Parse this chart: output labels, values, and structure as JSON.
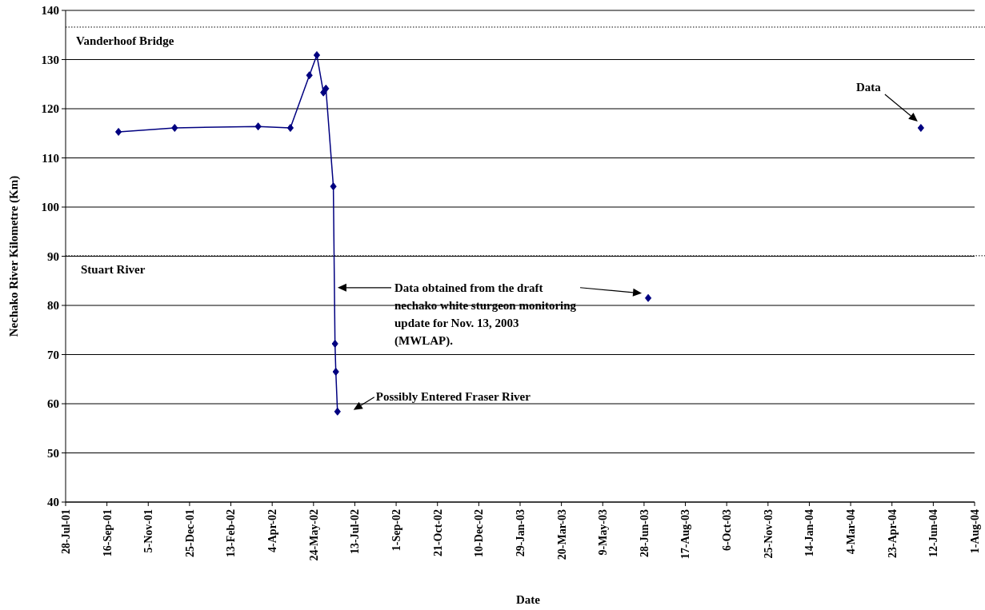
{
  "chart_data": {
    "type": "line",
    "xlabel": "Date",
    "ylabel": "Nechako River Kilometre (Km)",
    "xlim": [
      "2001-07-28",
      "2004-08-01"
    ],
    "ylim": [
      40,
      140
    ],
    "xticks": [
      {
        "value": "2001-07-28",
        "label": "28-Jul-01"
      },
      {
        "value": "2001-09-16",
        "label": "16-Sep-01"
      },
      {
        "value": "2001-11-05",
        "label": "5-Nov-01"
      },
      {
        "value": "2001-12-25",
        "label": "25-Dec-01"
      },
      {
        "value": "2002-02-13",
        "label": "13-Feb-02"
      },
      {
        "value": "2002-04-04",
        "label": "4-Apr-02"
      },
      {
        "value": "2002-05-24",
        "label": "24-May-02"
      },
      {
        "value": "2002-07-13",
        "label": "13-Jul-02"
      },
      {
        "value": "2002-09-01",
        "label": "1-Sep-02"
      },
      {
        "value": "2002-10-21",
        "label": "21-Oct-02"
      },
      {
        "value": "2002-12-10",
        "label": "10-Dec-02"
      },
      {
        "value": "2003-01-29",
        "label": "29-Jan-03"
      },
      {
        "value": "2003-03-20",
        "label": "20-Mar-03"
      },
      {
        "value": "2003-05-09",
        "label": "9-May-03"
      },
      {
        "value": "2003-06-28",
        "label": "28-Jun-03"
      },
      {
        "value": "2003-08-17",
        "label": "17-Aug-03"
      },
      {
        "value": "2003-10-06",
        "label": "6-Oct-03"
      },
      {
        "value": "2003-11-25",
        "label": "25-Nov-03"
      },
      {
        "value": "2004-01-14",
        "label": "14-Jan-04"
      },
      {
        "value": "2004-03-04",
        "label": "4-Mar-04"
      },
      {
        "value": "2004-04-23",
        "label": "23-Apr-04"
      },
      {
        "value": "2004-06-12",
        "label": "12-Jun-04"
      },
      {
        "value": "2004-08-01",
        "label": "1-Aug-04"
      }
    ],
    "yticks": [
      40,
      50,
      60,
      70,
      80,
      90,
      100,
      110,
      120,
      130,
      140
    ],
    "grid": "y",
    "marker": "diamond",
    "line_style": "solid",
    "series": [
      {
        "color": "#000080",
        "x": [
          "2001-09-30",
          "2001-12-07",
          "2002-03-18",
          "2002-04-26",
          "2002-05-19",
          "2002-05-28",
          "2002-06-05",
          "2002-06-08",
          "2002-06-17",
          "2002-06-19",
          "2002-06-20",
          "2002-06-22"
        ],
        "values": [
          115.3,
          116.1,
          116.4,
          116.1,
          126.8,
          130.9,
          123.3,
          124.1,
          104.2,
          72.2,
          66.5,
          58.4
        ]
      },
      {
        "type": "scatter",
        "color": "#000080",
        "x": [
          "2003-07-03"
        ],
        "values": [
          81.5
        ]
      },
      {
        "type": "scatter",
        "color": "#000080",
        "x": [
          "2004-05-28"
        ],
        "values": [
          116.1
        ]
      }
    ],
    "ref_lines": [
      {
        "axis": "y",
        "value": 136.6,
        "label": "Vanderhoof Bridge",
        "line_style": "dotted",
        "color": "#000000"
      },
      {
        "axis": "y",
        "value": 90.1,
        "label": "Stuart River",
        "line_style": "dotted",
        "color": "#000000"
      }
    ],
    "annotations": [
      "Data obtained from the draft\nnechako white sturgeon monitoring\nupdate for Nov. 13, 2003\n(MWLAP).",
      "Possibly Entered Fraser River",
      "Data"
    ]
  }
}
